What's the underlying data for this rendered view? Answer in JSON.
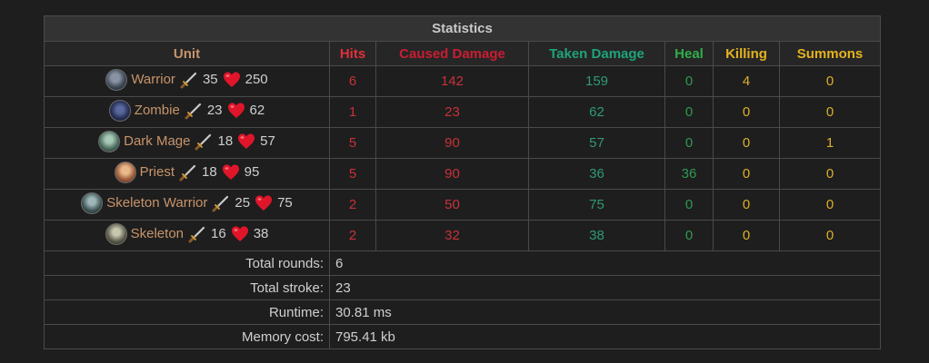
{
  "title": "Statistics",
  "headers": {
    "unit": "Unit",
    "hits": "Hits",
    "caused": "Caused Damage",
    "taken": "Taken Damage",
    "heal": "Heal",
    "killing": "Killing",
    "summons": "Summons"
  },
  "rows": [
    {
      "name": "Warrior",
      "attack": "35",
      "health": "250",
      "hits": "6",
      "caused": "142",
      "taken": "159",
      "heal": "0",
      "killing": "4",
      "summons": "0"
    },
    {
      "name": "Zombie",
      "attack": "23",
      "health": "62",
      "hits": "1",
      "caused": "23",
      "taken": "62",
      "heal": "0",
      "killing": "0",
      "summons": "0"
    },
    {
      "name": "Dark Mage",
      "attack": "18",
      "health": "57",
      "hits": "5",
      "caused": "90",
      "taken": "57",
      "heal": "0",
      "killing": "0",
      "summons": "1"
    },
    {
      "name": "Priest",
      "attack": "18",
      "health": "95",
      "hits": "5",
      "caused": "90",
      "taken": "36",
      "heal": "36",
      "killing": "0",
      "summons": "0"
    },
    {
      "name": "Skeleton Warrior",
      "attack": "25",
      "health": "75",
      "hits": "2",
      "caused": "50",
      "taken": "75",
      "heal": "0",
      "killing": "0",
      "summons": "0"
    },
    {
      "name": "Skeleton",
      "attack": "16",
      "health": "38",
      "hits": "2",
      "caused": "32",
      "taken": "38",
      "heal": "0",
      "killing": "0",
      "summons": "0"
    }
  ],
  "summary": {
    "total_rounds_label": "Total rounds:",
    "total_rounds": "6",
    "total_stroke_label": "Total stroke:",
    "total_stroke": "23",
    "runtime_label": "Runtime:",
    "runtime": "30.81 ms",
    "memory_label": "Memory cost:",
    "memory": "795.41 kb"
  },
  "icons": {
    "attack": "sword-icon",
    "health": "heart-icon"
  },
  "colors": {
    "background": "#1e1e1e",
    "hits": "#e0303a",
    "caused": "#c91d32",
    "taken": "#1fa37a",
    "heal": "#2fae4a",
    "killing": "#e5b21f",
    "summons": "#e5b21f",
    "unit": "#c8946a"
  }
}
